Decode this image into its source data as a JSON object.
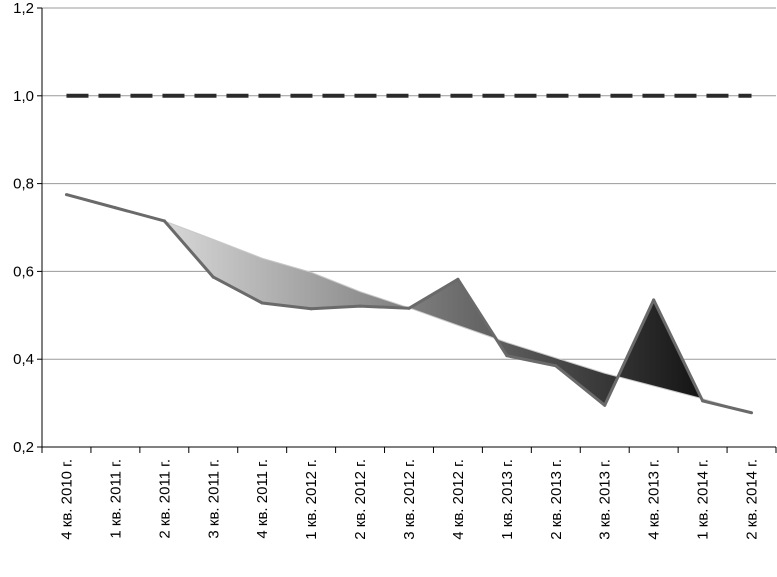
{
  "chart_data": {
    "type": "line",
    "title": "",
    "xlabel": "",
    "ylabel": "",
    "ylim": [
      0.2,
      1.2
    ],
    "yticks": [
      "0,2",
      "0,4",
      "0,6",
      "0,8",
      "1,0",
      "1,2"
    ],
    "ytick_values": [
      0.2,
      0.4,
      0.6,
      0.8,
      1.0,
      1.2
    ],
    "grid": true,
    "categories": [
      "4 кв. 2010 г.",
      "1 кв. 2011 г.",
      "2 кв. 2011 г.",
      "3 кв. 2011 г.",
      "4 кв. 2011 г.",
      "1 кв. 2012 г.",
      "2 кв. 2012 г.",
      "3 кв. 2012 г.",
      "4 кв. 2012 г.",
      "1 кв. 2013 г.",
      "2 кв. 2013 г.",
      "3 кв. 2013 г.",
      "4 кв. 2013 г.",
      "1 кв. 2014 г.",
      "2 кв. 2014 г."
    ],
    "series": [
      {
        "values": [
          0.775,
          0.745,
          0.715,
          0.587,
          0.528,
          0.515,
          0.521,
          0.516,
          0.582,
          0.408,
          0.385,
          0.295,
          0.535,
          0.305,
          0.278
        ]
      },
      {
        "values": [
          0.775,
          0.745,
          0.715,
          0.673,
          0.63,
          0.598,
          0.554,
          0.517,
          0.477,
          0.438,
          0.403,
          0.368,
          0.339,
          0.31,
          0.278
        ]
      },
      {
        "values": [
          1.0,
          1.0,
          1.0,
          1.0,
          1.0,
          1.0,
          1.0,
          1.0,
          1.0,
          1.0,
          1.0,
          1.0,
          1.0,
          1.0,
          1.0
        ]
      }
    ],
    "colors": {
      "actual_line": "#6a6a6a",
      "band_light": "#d8d8d8",
      "band_dark": "#111111",
      "reference_dash": "#2a2a2a",
      "grid": "#9a9a9a",
      "axis": "#000000"
    }
  }
}
